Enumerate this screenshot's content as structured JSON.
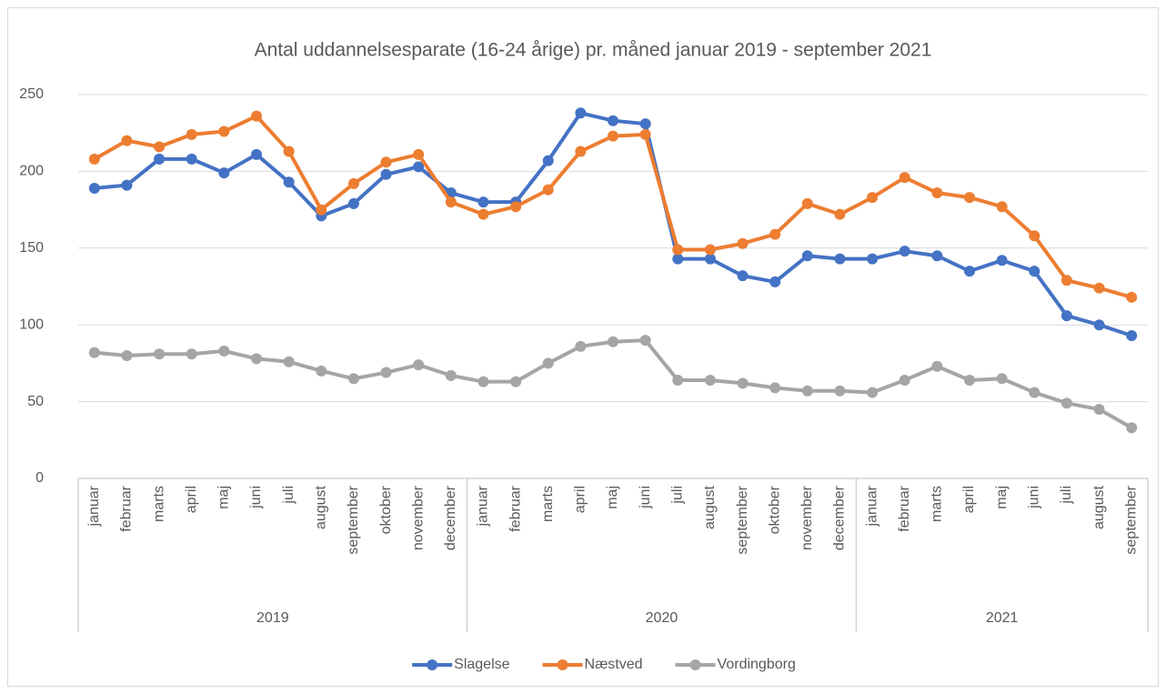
{
  "chart_data": {
    "type": "line",
    "title": "Antal uddannelsesparate (16-24 årige) pr. måned januar 2019 - september 2021",
    "category_groups": [
      {
        "label": "2019",
        "categories": [
          "januar",
          "februar",
          "marts",
          "april",
          "maj",
          "juni",
          "juli",
          "august",
          "september",
          "oktober",
          "november",
          "december"
        ]
      },
      {
        "label": "2020",
        "categories": [
          "januar",
          "februar",
          "marts",
          "april",
          "maj",
          "juni",
          "juli",
          "august",
          "september",
          "oktober",
          "november",
          "december"
        ]
      },
      {
        "label": "2021",
        "categories": [
          "januar",
          "februar",
          "marts",
          "april",
          "maj",
          "juni",
          "juli",
          "august",
          "september"
        ]
      }
    ],
    "series": [
      {
        "name": "Slagelse",
        "color": "#4472c4",
        "values": [
          189,
          191,
          208,
          208,
          199,
          211,
          193,
          171,
          179,
          198,
          203,
          186,
          180,
          180,
          207,
          238,
          233,
          231,
          143,
          143,
          132,
          128,
          145,
          143,
          143,
          148,
          145,
          135,
          142,
          135,
          106,
          100,
          93
        ]
      },
      {
        "name": "Næstved",
        "color": "#ed7d31",
        "values": [
          208,
          220,
          216,
          224,
          226,
          236,
          213,
          175,
          192,
          206,
          211,
          180,
          172,
          177,
          188,
          213,
          223,
          224,
          149,
          149,
          153,
          159,
          179,
          172,
          183,
          196,
          186,
          183,
          177,
          158,
          129,
          124,
          118
        ]
      },
      {
        "name": "Vordingborg",
        "color": "#a5a5a5",
        "values": [
          82,
          80,
          81,
          81,
          83,
          78,
          76,
          70,
          65,
          69,
          74,
          67,
          63,
          63,
          75,
          86,
          89,
          90,
          64,
          64,
          62,
          59,
          57,
          57,
          56,
          64,
          73,
          64,
          65,
          56,
          49,
          45,
          33
        ]
      }
    ],
    "ylim": [
      0,
      250
    ],
    "yticks": [
      0,
      50,
      100,
      150,
      200,
      250
    ],
    "grid": true,
    "legend": "bottom"
  }
}
